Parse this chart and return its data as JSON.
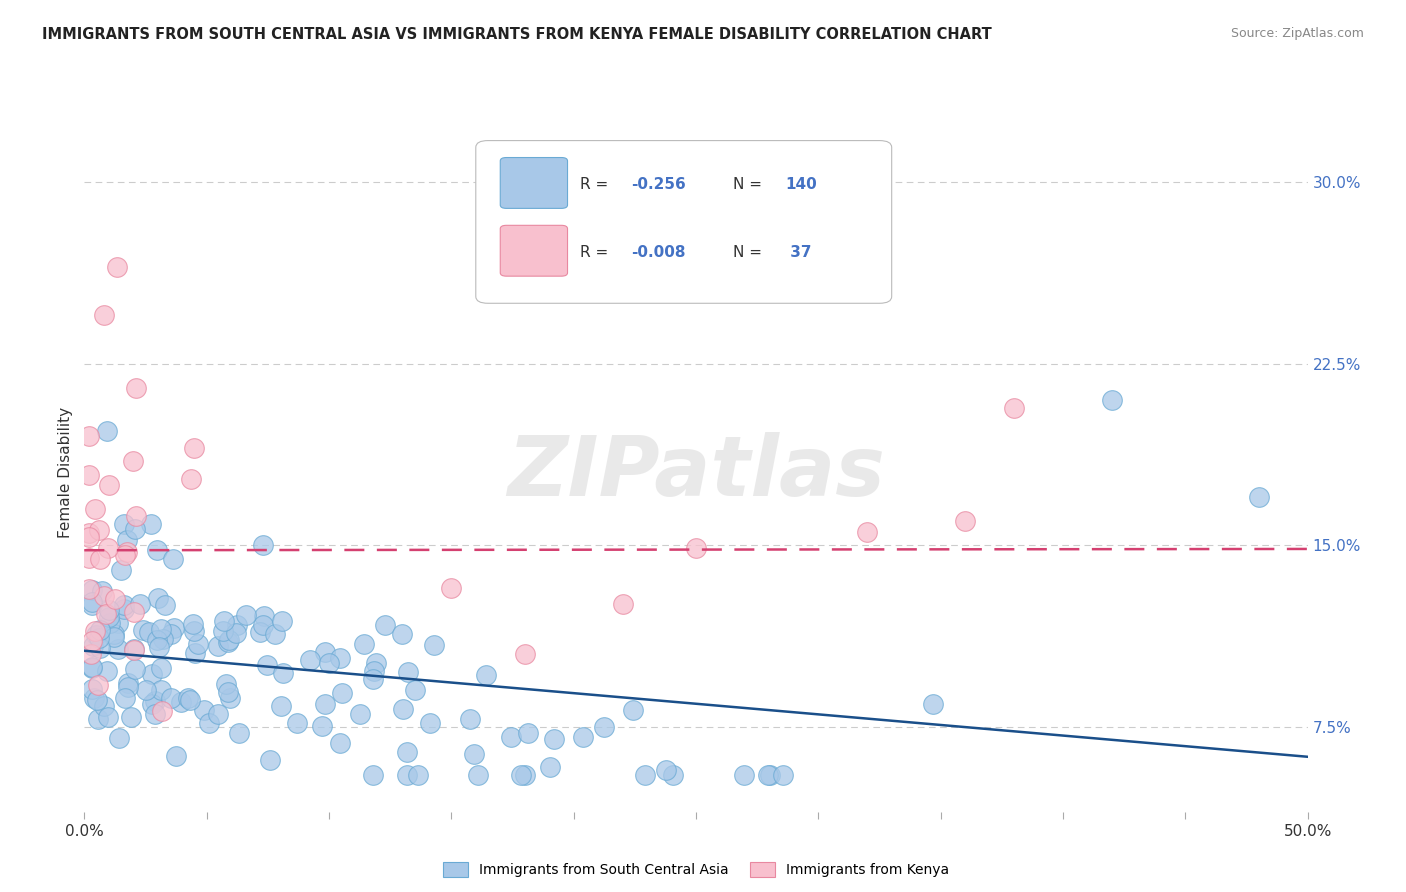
{
  "title": "IMMIGRANTS FROM SOUTH CENTRAL ASIA VS IMMIGRANTS FROM KENYA FEMALE DISABILITY CORRELATION CHART",
  "source": "Source: ZipAtlas.com",
  "ylabel": "Female Disability",
  "legend_bottom_label1": "Immigrants from South Central Asia",
  "legend_bottom_label2": "Immigrants from Kenya",
  "blue_scatter_color": "#a8c8e8",
  "blue_edge_color": "#6aaad4",
  "pink_scatter_color": "#f8c0ce",
  "pink_edge_color": "#e888a0",
  "blue_line_color": "#1a4f8a",
  "pink_line_color": "#d44070",
  "watermark_color": "#d8d8d8",
  "grid_color": "#cccccc",
  "right_tick_color": "#4472c4",
  "x_lim": [
    0.0,
    0.5
  ],
  "y_lim": [
    0.04,
    0.32
  ],
  "y_ticks": [
    0.075,
    0.15,
    0.225,
    0.3
  ],
  "y_tick_labels": [
    "7.5%",
    "15.0%",
    "22.5%",
    "30.0%"
  ],
  "x_ticks": [
    0.0,
    0.05,
    0.1,
    0.15,
    0.2,
    0.25,
    0.3,
    0.35,
    0.4,
    0.45,
    0.5
  ],
  "legend_r1": "R = ",
  "legend_v1": "-0.256",
  "legend_n1_label": "N = ",
  "legend_n1": "140",
  "legend_r2": "R = ",
  "legend_v2": "-0.008",
  "legend_n2_label": "N =  ",
  "legend_n2": "37",
  "blue_seed": 42,
  "pink_seed": 99
}
